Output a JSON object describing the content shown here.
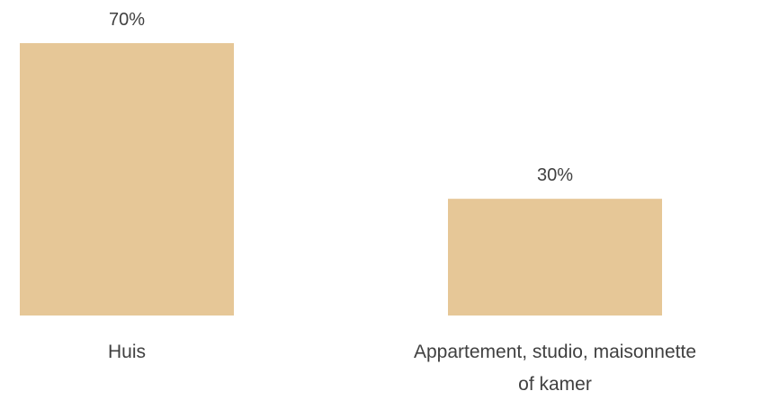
{
  "chart_data": {
    "type": "bar",
    "categories": [
      "Huis",
      "Appartement, studio, maisonnette of kamer"
    ],
    "category_label_lines": [
      [
        "Huis"
      ],
      [
        "Appartement, studio, maisonnette",
        "of kamer"
      ]
    ],
    "values": [
      70,
      30
    ],
    "data_labels": [
      "70%",
      "30%"
    ],
    "ylim": [
      0,
      70
    ],
    "grid": false,
    "legend": "none",
    "bar_color": "#e6c797",
    "text_color": "#404040"
  }
}
